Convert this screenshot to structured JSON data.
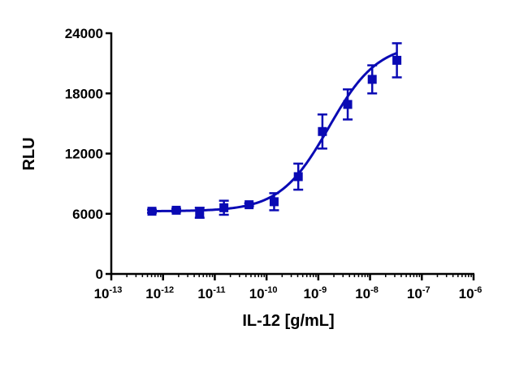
{
  "chart_data": {
    "type": "scatter",
    "xlabel": "IL-12 [g/mL]",
    "ylabel": "RLU",
    "xscale": "log",
    "xlim": [
      1e-13,
      1e-06
    ],
    "ylim": [
      0,
      24000
    ],
    "x_ticks": [
      {
        "base": "10",
        "exp": "-13",
        "value": 1e-13
      },
      {
        "base": "10",
        "exp": "-12",
        "value": 1e-12
      },
      {
        "base": "10",
        "exp": "-11",
        "value": 1e-11
      },
      {
        "base": "10",
        "exp": "-10",
        "value": 1e-10
      },
      {
        "base": "10",
        "exp": "-9",
        "value": 1e-09
      },
      {
        "base": "10",
        "exp": "-8",
        "value": 1e-08
      },
      {
        "base": "10",
        "exp": "-7",
        "value": 1e-07
      },
      {
        "base": "10",
        "exp": "-6",
        "value": 1e-06
      }
    ],
    "y_ticks": [
      {
        "label": "0",
        "value": 0
      },
      {
        "label": "6000",
        "value": 6000
      },
      {
        "label": "12000",
        "value": 12000
      },
      {
        "label": "18000",
        "value": 18000
      },
      {
        "label": "24000",
        "value": 24000
      }
    ],
    "grid": false,
    "legend": "none",
    "series": [
      {
        "color": "#0a0ab4",
        "marker": "square",
        "points": [
          {
            "x": 6.1e-13,
            "y": 6250,
            "err": 150
          },
          {
            "x": 1.8e-12,
            "y": 6350,
            "err": 150
          },
          {
            "x": 5.1e-12,
            "y": 6100,
            "err": 500
          },
          {
            "x": 1.5e-11,
            "y": 6600,
            "err": 700
          },
          {
            "x": 4.6e-11,
            "y": 6900,
            "err": 150
          },
          {
            "x": 1.4e-10,
            "y": 7200,
            "err": 850
          },
          {
            "x": 4.1e-10,
            "y": 9700,
            "err": 1300
          },
          {
            "x": 1.2e-09,
            "y": 14200,
            "err": 1700
          },
          {
            "x": 3.7e-09,
            "y": 16900,
            "err": 1500
          },
          {
            "x": 1.1e-08,
            "y": 19400,
            "err": 1400
          },
          {
            "x": 3.3e-08,
            "y": 21300,
            "err": 1700
          }
        ],
        "fit": {
          "model": "4PL",
          "bottom": 6250,
          "top": 23000,
          "ec50": 1.6e-09,
          "hill": 0.92
        }
      }
    ]
  }
}
